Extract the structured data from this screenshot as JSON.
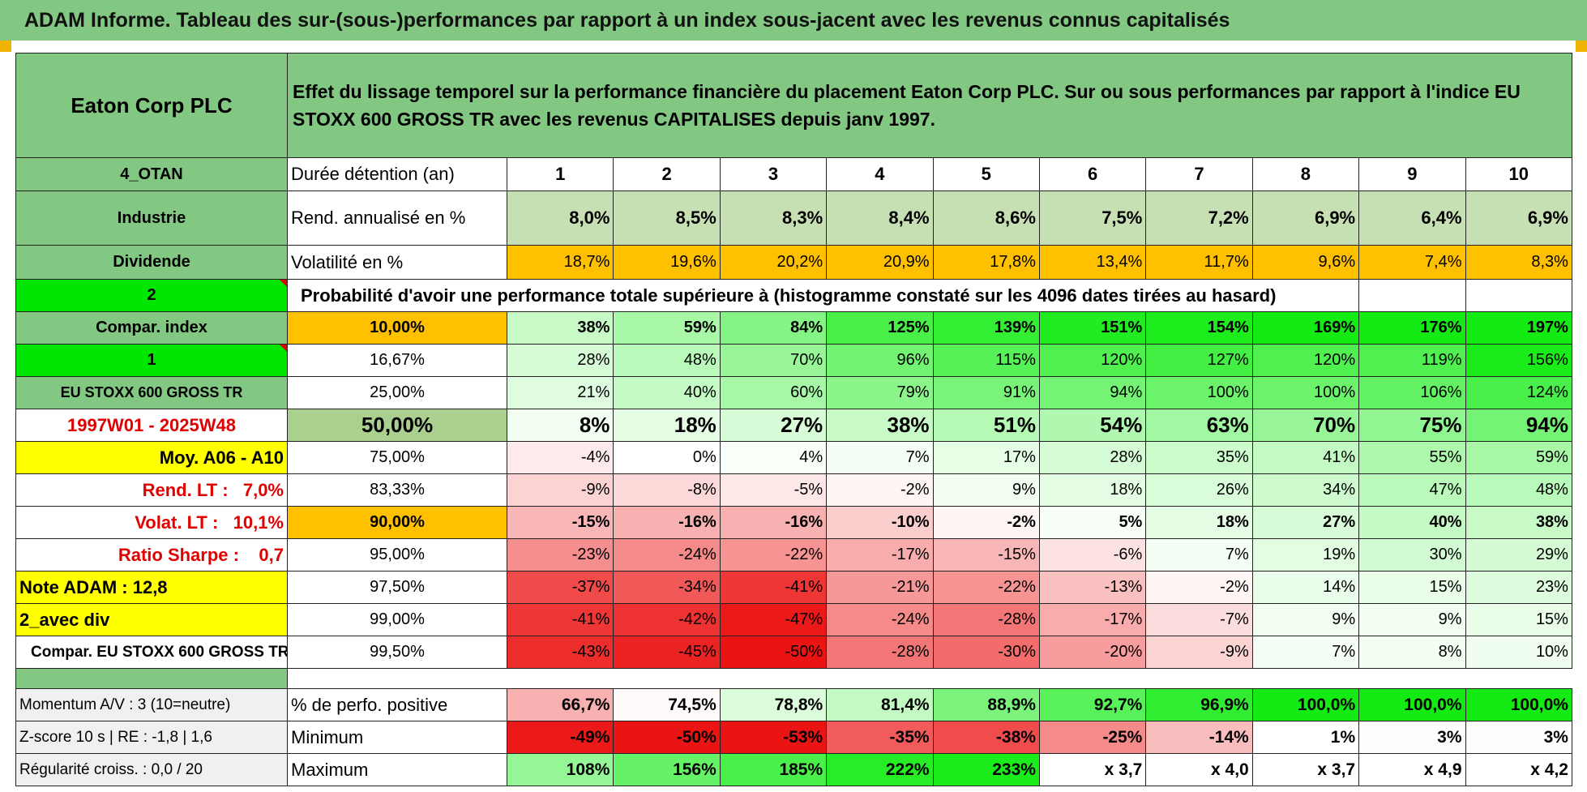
{
  "title": "ADAM Informe. Tableau des sur-(sous-)performances par rapport à un index sous-jacent avec les revenus connus capitalisés",
  "header": {
    "name": "Eaton Corp PLC",
    "description": "Effet du lissage temporel sur la performance financière du placement Eaton Corp PLC. Sur ou sous performances par rapport à l'indice EU STOXX 600 GROSS TR avec les revenus CAPITALISES depuis janv 1997."
  },
  "side_labels": [
    "4_OTAN",
    "Industrie",
    "Dividende",
    "2",
    "Compar. index",
    "1",
    "EU STOXX 600 GROSS TR",
    "1997W01 - 2025W48",
    "Moy. A06 - A10",
    "Rend. LT :   7,0%",
    "Volat. LT :   10,1%",
    "Ratio Sharpe :    0,7",
    "Note ADAM : 12,8",
    "2_avec div",
    "Compar. EU STOXX 600 GROSS TR"
  ],
  "summary_rows": [
    {
      "label": "Durée détention (an)",
      "values": [
        "1",
        "2",
        "3",
        "4",
        "5",
        "6",
        "7",
        "8",
        "9",
        "10"
      ]
    },
    {
      "label": "Rend. annualisé en %",
      "values": [
        "8,0%",
        "8,5%",
        "8,3%",
        "8,4%",
        "8,6%",
        "7,5%",
        "7,2%",
        "6,9%",
        "6,4%",
        "6,9%"
      ]
    },
    {
      "label": "Volatilité en %",
      "values": [
        "18,7%",
        "19,6%",
        "20,2%",
        "20,9%",
        "17,8%",
        "13,4%",
        "11,7%",
        "9,6%",
        "7,4%",
        "8,3%"
      ]
    }
  ],
  "probability_title": "Probabilité d'avoir une performance totale supérieure à (histogramme constaté sur les 4096 dates tirées au hasard)",
  "probability_rows": [
    {
      "threshold": "10,00%",
      "values": [
        "38%",
        "59%",
        "84%",
        "125%",
        "139%",
        "151%",
        "154%",
        "169%",
        "176%",
        "197%"
      ]
    },
    {
      "threshold": "16,67%",
      "values": [
        "28%",
        "48%",
        "70%",
        "96%",
        "115%",
        "120%",
        "127%",
        "120%",
        "119%",
        "156%"
      ]
    },
    {
      "threshold": "25,00%",
      "values": [
        "21%",
        "40%",
        "60%",
        "79%",
        "91%",
        "94%",
        "100%",
        "100%",
        "106%",
        "124%"
      ]
    },
    {
      "threshold": "50,00%",
      "values": [
        "8%",
        "18%",
        "27%",
        "38%",
        "51%",
        "54%",
        "63%",
        "70%",
        "75%",
        "94%"
      ]
    },
    {
      "threshold": "75,00%",
      "values": [
        "-4%",
        "0%",
        "4%",
        "7%",
        "17%",
        "28%",
        "35%",
        "41%",
        "55%",
        "59%"
      ]
    },
    {
      "threshold": "83,33%",
      "values": [
        "-9%",
        "-8%",
        "-5%",
        "-2%",
        "9%",
        "18%",
        "26%",
        "34%",
        "47%",
        "48%"
      ]
    },
    {
      "threshold": "90,00%",
      "values": [
        "-15%",
        "-16%",
        "-16%",
        "-10%",
        "-2%",
        "5%",
        "18%",
        "27%",
        "40%",
        "38%"
      ]
    },
    {
      "threshold": "95,00%",
      "values": [
        "-23%",
        "-24%",
        "-22%",
        "-17%",
        "-15%",
        "-6%",
        "7%",
        "19%",
        "30%",
        "29%"
      ]
    },
    {
      "threshold": "97,50%",
      "values": [
        "-37%",
        "-34%",
        "-41%",
        "-21%",
        "-22%",
        "-13%",
        "-2%",
        "14%",
        "15%",
        "23%"
      ]
    },
    {
      "threshold": "99,00%",
      "values": [
        "-41%",
        "-42%",
        "-47%",
        "-24%",
        "-28%",
        "-17%",
        "-7%",
        "9%",
        "9%",
        "15%"
      ]
    },
    {
      "threshold": "99,50%",
      "values": [
        "-43%",
        "-45%",
        "-50%",
        "-28%",
        "-30%",
        "-20%",
        "-9%",
        "7%",
        "8%",
        "10%"
      ]
    }
  ],
  "bottom_rows": [
    {
      "side": "Momentum A/V : 3 (10=neutre)",
      "label": "% de perfo. positive",
      "values": [
        "66,7%",
        "74,5%",
        "78,8%",
        "81,4%",
        "88,9%",
        "92,7%",
        "96,9%",
        "100,0%",
        "100,0%",
        "100,0%"
      ]
    },
    {
      "side": "Z-score 10 s | RE : -1,8 | 1,6",
      "label": "Minimum",
      "values": [
        "-49%",
        "-50%",
        "-53%",
        "-35%",
        "-38%",
        "-25%",
        "-14%",
        "1%",
        "3%",
        "3%"
      ]
    },
    {
      "side": "Régularité croiss. : 0,0 / 20",
      "label": "Maximum",
      "values": [
        "108%",
        "156%",
        "185%",
        "222%",
        "233%",
        "x 3,7",
        "x 4,0",
        "x 3,7",
        "x 4,9",
        "x 4,2"
      ]
    }
  ]
}
